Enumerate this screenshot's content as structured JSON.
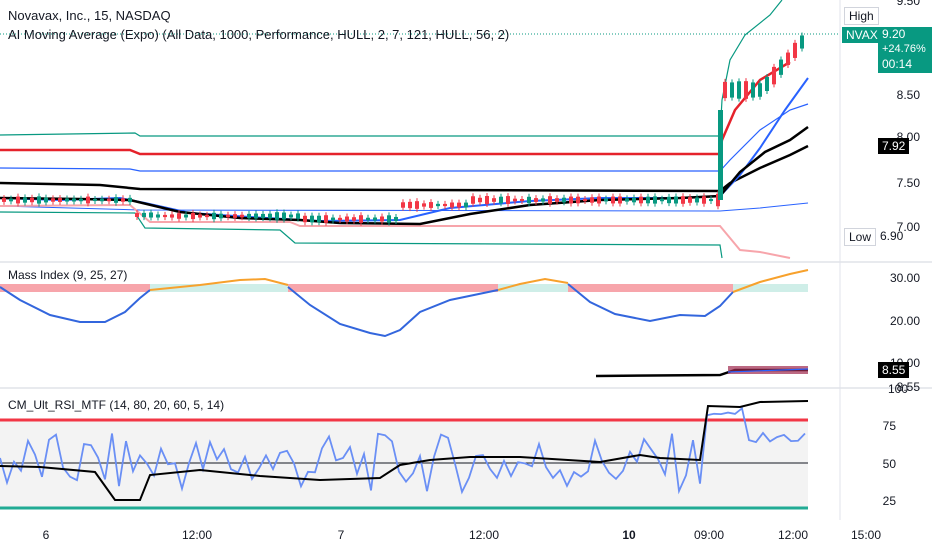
{
  "header": {
    "symbol_line": "Novavax, Inc., 15, NASDAQ",
    "indicator_line": "AI Moving Average (Expo) (All Data, 1000, Performance, HULL, 2, 7, 121, HULL, 56, 2)"
  },
  "price_axis": {
    "ticks": [
      "8.50",
      "7.50"
    ],
    "partial_ticks": [
      "9.50",
      "8.00",
      "7.00"
    ]
  },
  "price_tags": {
    "high_label": "High",
    "low_label": "Low",
    "low_value": "6.90",
    "symbol": "NVAX",
    "last_price": "9.20",
    "change_pct": "+24.76%",
    "countdown": "00:14",
    "ma_value": "7.92",
    "accent_green": "#089981",
    "black": "#000000"
  },
  "mass_index": {
    "title": "Mass Index (9, 25, 27)",
    "ticks": [
      "30.00",
      "20.00"
    ],
    "partial_tick": "10.00",
    "value_tag": "8.55",
    "partial_tag": "8.55"
  },
  "rsi": {
    "title": "CM_Ult_RSI_MTF (14, 80, 20, 60, 5, 14)",
    "ticks": [
      "75",
      "50",
      "25"
    ],
    "partial_tick": "100",
    "overbought_color": "#f23645",
    "oversold_color": "#22ab94"
  },
  "time_axis": {
    "labels": [
      "6",
      "12:00",
      "7",
      "12:00",
      "10",
      "09:00",
      "12:00",
      "15:00"
    ]
  }
}
